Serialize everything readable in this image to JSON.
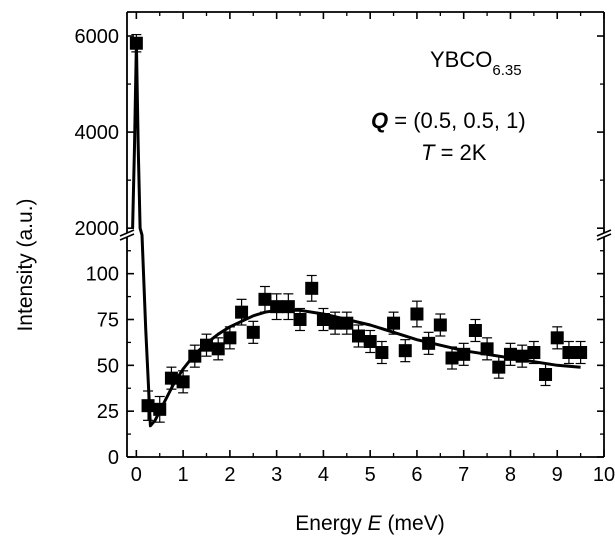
{
  "chart_data": {
    "type": "scatter",
    "xlabel_prefix": "Energy ",
    "xlabel_var": "E",
    "xlabel_suffix": " (meV)",
    "ylabel": "Intensity (a.u.)",
    "xlim": [
      -0.2,
      10
    ],
    "ylim_lower": [
      0,
      120
    ],
    "ylim_upper": [
      1900,
      6500
    ],
    "axis_break": true,
    "xticks": [
      0,
      1,
      2,
      3,
      4,
      5,
      6,
      7,
      8,
      9,
      10
    ],
    "yticks_lower": [
      0,
      25,
      50,
      75,
      100
    ],
    "yticks_upper": [
      2000,
      4000,
      6000
    ],
    "annotations": {
      "sample": "YBCO",
      "sample_sub": "6.35",
      "q_var": "Q",
      "q_value": " = (0.5, 0.5, 1)",
      "t_var": "T",
      "t_value": " = 2K"
    },
    "series": [
      {
        "type": "points_with_errorbars",
        "marker": "square",
        "points": [
          {
            "x": 0.0,
            "y": 5850,
            "err": 180
          },
          {
            "x": 0.25,
            "y": 28,
            "err": 8
          },
          {
            "x": 0.5,
            "y": 26,
            "err": 7
          },
          {
            "x": 0.75,
            "y": 43,
            "err": 6
          },
          {
            "x": 1.0,
            "y": 41,
            "err": 6
          },
          {
            "x": 1.25,
            "y": 55,
            "err": 6
          },
          {
            "x": 1.5,
            "y": 61,
            "err": 6
          },
          {
            "x": 1.75,
            "y": 59,
            "err": 6
          },
          {
            "x": 2.0,
            "y": 65,
            "err": 6
          },
          {
            "x": 2.25,
            "y": 79,
            "err": 7
          },
          {
            "x": 2.5,
            "y": 68,
            "err": 6
          },
          {
            "x": 2.75,
            "y": 86,
            "err": 7
          },
          {
            "x": 3.0,
            "y": 82,
            "err": 7
          },
          {
            "x": 3.25,
            "y": 82,
            "err": 7
          },
          {
            "x": 3.5,
            "y": 75,
            "err": 6
          },
          {
            "x": 3.75,
            "y": 92,
            "err": 7
          },
          {
            "x": 4.0,
            "y": 75,
            "err": 6
          },
          {
            "x": 4.25,
            "y": 73,
            "err": 6
          },
          {
            "x": 4.5,
            "y": 73,
            "err": 6
          },
          {
            "x": 4.75,
            "y": 66,
            "err": 6
          },
          {
            "x": 5.0,
            "y": 63,
            "err": 6
          },
          {
            "x": 5.25,
            "y": 57,
            "err": 6
          },
          {
            "x": 5.5,
            "y": 73,
            "err": 6
          },
          {
            "x": 5.75,
            "y": 58,
            "err": 6
          },
          {
            "x": 6.0,
            "y": 78,
            "err": 7
          },
          {
            "x": 6.25,
            "y": 62,
            "err": 6
          },
          {
            "x": 6.5,
            "y": 72,
            "err": 6
          },
          {
            "x": 6.75,
            "y": 54,
            "err": 6
          },
          {
            "x": 7.0,
            "y": 56,
            "err": 6
          },
          {
            "x": 7.25,
            "y": 69,
            "err": 6
          },
          {
            "x": 7.5,
            "y": 59,
            "err": 6
          },
          {
            "x": 7.75,
            "y": 49,
            "err": 6
          },
          {
            "x": 8.0,
            "y": 56,
            "err": 6
          },
          {
            "x": 8.25,
            "y": 55,
            "err": 6
          },
          {
            "x": 8.5,
            "y": 57,
            "err": 6
          },
          {
            "x": 8.75,
            "y": 45,
            "err": 6
          },
          {
            "x": 9.0,
            "y": 65,
            "err": 6
          },
          {
            "x": 9.25,
            "y": 57,
            "err": 6
          },
          {
            "x": 9.5,
            "y": 57,
            "err": 6
          }
        ]
      },
      {
        "type": "fit_line",
        "points": [
          [
            -0.08,
            2000
          ],
          [
            -0.04,
            3700
          ],
          [
            0.0,
            5850
          ],
          [
            0.04,
            3700
          ],
          [
            0.08,
            2000
          ],
          [
            0.12,
            1000
          ],
          [
            0.2,
            70
          ],
          [
            0.3,
            17
          ],
          [
            0.4,
            20
          ],
          [
            0.6,
            30
          ],
          [
            0.8,
            40
          ],
          [
            1.0,
            48
          ],
          [
            1.25,
            56
          ],
          [
            1.5,
            62
          ],
          [
            1.75,
            67
          ],
          [
            2.0,
            71
          ],
          [
            2.25,
            74
          ],
          [
            2.5,
            77
          ],
          [
            2.75,
            79
          ],
          [
            3.0,
            80
          ],
          [
            3.5,
            80
          ],
          [
            4.0,
            78
          ],
          [
            4.5,
            75
          ],
          [
            5.0,
            72
          ],
          [
            5.5,
            68
          ],
          [
            6.0,
            64
          ],
          [
            6.5,
            61
          ],
          [
            7.0,
            58
          ],
          [
            7.5,
            56
          ],
          [
            8.0,
            54
          ],
          [
            8.5,
            52
          ],
          [
            9.0,
            50
          ],
          [
            9.5,
            49
          ]
        ]
      }
    ]
  }
}
